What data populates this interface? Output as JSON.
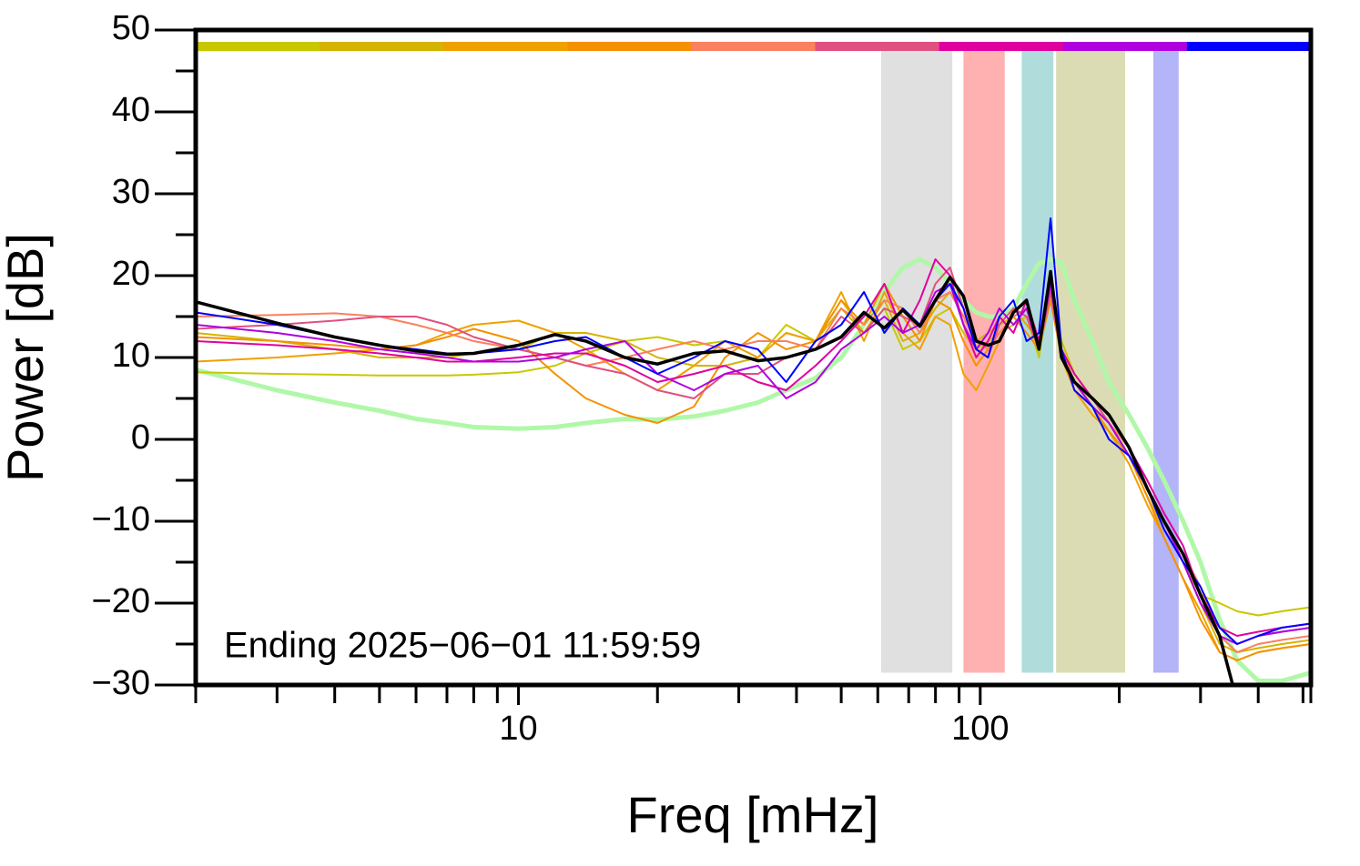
{
  "chart_data": {
    "type": "line",
    "x_label": "Freq [mHz]",
    "y_label": "Power [dB]",
    "annotation": "Ending 2025−06−01 11:59:59",
    "xscale": "log",
    "xlim": [
      2,
      520
    ],
    "xticks": [
      10,
      100
    ],
    "xminor": [
      3,
      4,
      5,
      6,
      7,
      8,
      9,
      20,
      30,
      40,
      50,
      60,
      70,
      80,
      90,
      200,
      300,
      400,
      500
    ],
    "ylim": [
      -30,
      50
    ],
    "yticks": [
      {
        "value": -30,
        "label": "−30"
      },
      {
        "value": -20,
        "label": "−20"
      },
      {
        "value": -10,
        "label": "−10"
      },
      0,
      10,
      20,
      30,
      40,
      50
    ],
    "yminor": [
      -25,
      -15,
      -5,
      5,
      15,
      25,
      35,
      45
    ],
    "bands": [
      {
        "xlim": [
          61,
          87
        ],
        "color": "#e0e0e0"
      },
      {
        "xlim": [
          92,
          113
        ],
        "color": "#ffb0b0"
      },
      {
        "xlim": [
          123,
          144
        ],
        "color": "#b0dcdc"
      },
      {
        "xlim": [
          146,
          206
        ],
        "color": "#dcdcb4"
      },
      {
        "xlim": [
          237,
          269
        ],
        "color": "#b4b4f8"
      }
    ],
    "band_ylim": [
      -28.5,
      47.8
    ],
    "color_bar_y": 48,
    "x": [
      2,
      3,
      4,
      5,
      6,
      7,
      8,
      10,
      12,
      14,
      17,
      20,
      24,
      28,
      33,
      38,
      44,
      50,
      56,
      62,
      68,
      74,
      80,
      86,
      92,
      98,
      104,
      110,
      118,
      126,
      134,
      142,
      150,
      160,
      175,
      190,
      210,
      230,
      250,
      275,
      300,
      330,
      360,
      400,
      450,
      520
    ],
    "series": [
      {
        "color": "#c8c800",
        "values": [
          8.2,
          8,
          7.9,
          7.8,
          7.8,
          7.8,
          7.9,
          8.2,
          9,
          10.5,
          12,
          12.5,
          11.5,
          12,
          10,
          14,
          12,
          17,
          13,
          16,
          11,
          12,
          15,
          16,
          13,
          11,
          12,
          13,
          14,
          15,
          10,
          19,
          12,
          8,
          5,
          3,
          -1,
          -6,
          -10,
          -15,
          -19,
          -20,
          -21,
          -21.5,
          -21,
          -20.5
        ]
      },
      {
        "color": "#d4b400",
        "values": [
          13,
          12,
          11,
          10,
          10,
          10,
          10.5,
          11,
          13,
          13,
          12,
          10,
          9,
          9,
          10,
          13,
          12,
          16,
          13,
          17,
          12,
          13,
          16,
          18,
          15,
          12,
          13,
          14,
          15,
          16,
          11,
          20,
          11,
          7,
          4,
          2,
          -2,
          -7,
          -11,
          -15,
          -20,
          -25,
          -26,
          -25.5,
          -25,
          -24.5
        ]
      },
      {
        "color": "#f0a000",
        "values": [
          9.5,
          10,
          10.5,
          11,
          11.5,
          13,
          14,
          14.5,
          13,
          11,
          8,
          6,
          9,
          12,
          10,
          13,
          12,
          18,
          12,
          18,
          13,
          11,
          15,
          14,
          8,
          6,
          9,
          12,
          16,
          14,
          12,
          18,
          10,
          6,
          3,
          1,
          -3,
          -8,
          -12,
          -17,
          -21,
          -26,
          -27,
          -26,
          -25.5,
          -25
        ]
      },
      {
        "color": "#f59000",
        "values": [
          12.5,
          12,
          11.5,
          11,
          11.5,
          12.5,
          13.5,
          12,
          8,
          5,
          3,
          2,
          4,
          10,
          13,
          11,
          12,
          17,
          14,
          19,
          15,
          12,
          17,
          16,
          12,
          9,
          11,
          13,
          15,
          13,
          11,
          17,
          10,
          6,
          4,
          1,
          -2,
          -7,
          -12,
          -17,
          -22,
          -26,
          -27,
          -26,
          -25.5,
          -25
        ]
      },
      {
        "color": "#fa8060",
        "values": [
          15,
          15.2,
          15.4,
          15,
          14,
          13,
          12,
          11,
          10,
          9,
          10,
          11,
          12,
          11,
          12,
          12,
          11,
          16,
          14,
          17,
          16,
          13,
          17,
          18,
          15,
          12,
          11,
          13,
          15,
          16,
          12,
          18,
          11,
          7,
          5,
          2,
          -1,
          -6,
          -10,
          -14,
          -18,
          -24,
          -26,
          -25,
          -24.5,
          -24
        ]
      },
      {
        "color": "#e05080",
        "values": [
          13.5,
          14,
          14.5,
          15,
          15,
          14,
          12.5,
          11,
          10,
          9,
          8,
          6,
          5,
          8,
          8,
          10,
          11,
          15,
          13,
          16,
          15,
          14,
          19,
          21,
          16,
          11,
          10,
          14,
          16,
          15,
          11,
          18,
          10,
          7,
          5,
          2,
          -2,
          -6,
          -10,
          -15,
          -20,
          -23,
          -25,
          -24,
          -23.5,
          -23
        ]
      },
      {
        "color": "#e000a0",
        "values": [
          12,
          11.5,
          11,
          10.5,
          10,
          9.5,
          9.5,
          10,
          10.5,
          10.5,
          9,
          7,
          8,
          9,
          7,
          6,
          9,
          12,
          15,
          19,
          13,
          17,
          22,
          20,
          14,
          10,
          12,
          15,
          13,
          17,
          12,
          19,
          11,
          8,
          5,
          3,
          -1,
          -5,
          -9,
          -13,
          -19,
          -23,
          -24,
          -23.5,
          -23,
          -22.5
        ]
      },
      {
        "color": "#b000e0",
        "values": [
          14,
          13,
          12,
          11,
          10.5,
          10,
          9.5,
          9.5,
          10,
          11,
          12,
          8,
          6,
          8,
          9,
          5,
          7,
          11,
          13,
          15,
          13,
          14,
          18,
          19,
          14,
          11,
          13,
          16,
          14,
          16,
          11,
          19,
          10,
          7,
          4,
          2,
          -2,
          -6,
          -10,
          -15,
          -20,
          -24,
          -25,
          -24,
          -23.5,
          -23
        ]
      },
      {
        "color": "#0000ff",
        "values": [
          15.5,
          14,
          12.5,
          11.5,
          11,
          10.5,
          10.5,
          11,
          12,
          12.5,
          10,
          8,
          10,
          12,
          11,
          7,
          12,
          14,
          18,
          13,
          16,
          14,
          17,
          19,
          16,
          11,
          10,
          15,
          17,
          12,
          13,
          27,
          11,
          6,
          4,
          0,
          -2,
          -6,
          -11,
          -15,
          -18,
          -23,
          -25,
          -24,
          -23,
          -22.5
        ]
      }
    ],
    "reference": {
      "color": "#b0f8a8",
      "values": [
        8.5,
        6,
        4.5,
        3.5,
        2.5,
        2,
        1.5,
        1.3,
        1.5,
        2,
        2.5,
        2.4,
        2.8,
        3.5,
        4.5,
        6,
        7.5,
        10,
        14,
        18,
        21,
        22,
        21,
        19,
        17,
        15.5,
        15,
        15,
        16,
        19,
        21.5,
        22,
        21.5,
        17,
        12,
        7,
        3,
        -1,
        -5,
        -10,
        -15,
        -22,
        -27,
        -29.5,
        -29.5,
        -28.5
      ]
    },
    "mean": {
      "color": "#000000",
      "values": [
        16.8,
        14.2,
        12.5,
        11.5,
        10.8,
        10.4,
        10.5,
        11.5,
        12.8,
        12,
        10,
        9.2,
        10.5,
        10.8,
        9.6,
        10,
        11,
        12.5,
        15.5,
        13.6,
        15.8,
        13.8,
        17,
        19.8,
        17.5,
        12,
        11.5,
        12,
        15.5,
        17,
        11,
        20.5,
        10,
        7,
        5,
        3,
        -1,
        -6,
        -10,
        -14,
        -19,
        -24,
        -32,
        null,
        null,
        null
      ]
    }
  }
}
